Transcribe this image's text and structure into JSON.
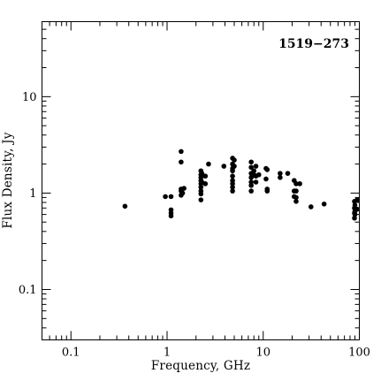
{
  "chart_data": {
    "type": "scatter",
    "title": "1519−273",
    "xlabel": "Frequency, GHz",
    "ylabel": "Flux Density, Jy",
    "xscale": "log",
    "yscale": "log",
    "xlim": [
      0.05,
      100
    ],
    "ylim": [
      0.03,
      60
    ],
    "grid": false,
    "x_ticks": [
      {
        "value": 0.1,
        "label": "0.1"
      },
      {
        "value": 1,
        "label": "1"
      },
      {
        "value": 10,
        "label": "10"
      },
      {
        "value": 100,
        "label": "100"
      }
    ],
    "y_ticks": [
      {
        "value": 0.1,
        "label": "0.1"
      },
      {
        "value": 1,
        "label": "1"
      },
      {
        "value": 10,
        "label": "10"
      }
    ],
    "series": [
      {
        "marker": "circle",
        "points": [
          [
            0.365,
            0.73
          ],
          [
            0.96,
            0.92
          ],
          [
            1.1,
            0.62
          ],
          [
            1.1,
            0.58
          ],
          [
            1.1,
            0.67
          ],
          [
            1.1,
            0.92
          ],
          [
            1.4,
            2.7
          ],
          [
            1.4,
            2.1
          ],
          [
            1.4,
            1.1
          ],
          [
            1.4,
            1.05
          ],
          [
            1.4,
            0.95
          ],
          [
            1.45,
            1.0
          ],
          [
            1.5,
            1.12
          ],
          [
            2.25,
            1.7
          ],
          [
            2.25,
            1.55
          ],
          [
            2.25,
            1.45
          ],
          [
            2.25,
            1.35
          ],
          [
            2.25,
            1.25
          ],
          [
            2.25,
            1.15
          ],
          [
            2.25,
            1.05
          ],
          [
            2.25,
            0.98
          ],
          [
            2.25,
            0.85
          ],
          [
            2.3,
            1.6
          ],
          [
            2.3,
            1.3
          ],
          [
            2.5,
            1.5
          ],
          [
            2.5,
            1.25
          ],
          [
            2.7,
            2.0
          ],
          [
            3.9,
            1.9
          ],
          [
            4.8,
            2.3
          ],
          [
            4.8,
            2.0
          ],
          [
            4.8,
            1.8
          ],
          [
            4.8,
            1.7
          ],
          [
            4.8,
            1.5
          ],
          [
            4.8,
            1.35
          ],
          [
            4.8,
            1.25
          ],
          [
            4.8,
            1.15
          ],
          [
            4.8,
            1.05
          ],
          [
            5.0,
            2.2
          ],
          [
            5.0,
            1.9
          ],
          [
            7.5,
            2.1
          ],
          [
            7.5,
            1.85
          ],
          [
            7.5,
            1.6
          ],
          [
            7.5,
            1.45
          ],
          [
            7.5,
            1.3
          ],
          [
            7.5,
            1.2
          ],
          [
            7.5,
            1.05
          ],
          [
            8.0,
            1.7
          ],
          [
            8.0,
            1.55
          ],
          [
            8.4,
            1.9
          ],
          [
            8.4,
            1.5
          ],
          [
            8.4,
            1.3
          ],
          [
            9.0,
            1.55
          ],
          [
            10.7,
            1.8
          ],
          [
            10.7,
            1.4
          ],
          [
            11.0,
            1.75
          ],
          [
            11.0,
            1.1
          ],
          [
            11.0,
            1.05
          ],
          [
            15.0,
            1.6
          ],
          [
            15.0,
            1.45
          ],
          [
            18.0,
            1.6
          ],
          [
            21.0,
            1.35
          ],
          [
            21.0,
            1.05
          ],
          [
            21.0,
            0.92
          ],
          [
            22.0,
            1.25
          ],
          [
            22.0,
            1.05
          ],
          [
            22.0,
            0.9
          ],
          [
            22.0,
            0.82
          ],
          [
            24.0,
            1.25
          ],
          [
            31.4,
            0.72
          ],
          [
            43.0,
            0.77
          ],
          [
            89.0,
            0.82
          ],
          [
            89.0,
            0.7
          ],
          [
            89.0,
            0.62
          ],
          [
            89.0,
            0.55
          ],
          [
            90.0,
            0.75
          ],
          [
            90.0,
            0.65
          ],
          [
            90.0,
            0.6
          ],
          [
            95.0,
            0.85
          ],
          [
            95.0,
            0.68
          ]
        ]
      }
    ]
  }
}
